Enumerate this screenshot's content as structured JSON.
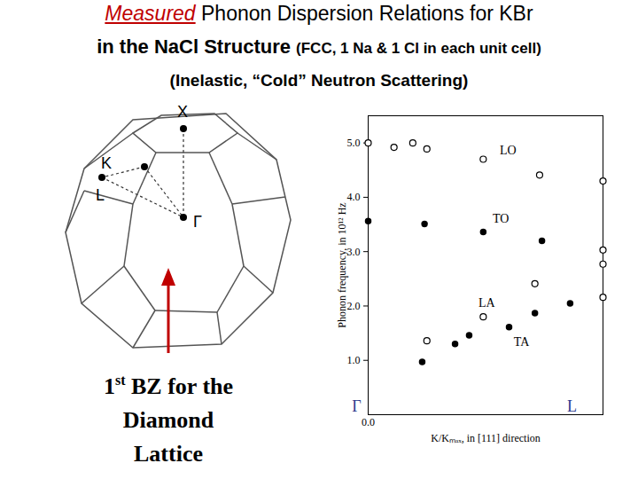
{
  "slide": {
    "title_emphasis": "Measured",
    "title": "Phonon Dispersion Relations for KBr",
    "subtitle": "in the NaCl Structure",
    "subtitle_note": "(FCC, 1 Na & 1 Cl in each unit cell)",
    "subtitle2": "(Inelastic, “Cold” Neutron Scattering)"
  },
  "diagram": {
    "labels": [
      "X",
      "K",
      "L",
      "Γ"
    ],
    "caption": {
      "lead": "1",
      "superscript": "st",
      "line1": " BZ for the",
      "line2": "Diamond",
      "line3": "Lattice"
    }
  },
  "chart_data": {
    "type": "scatter",
    "x_label": "K/Kₘₐₓ, in [111] direction",
    "y_label": "Phonon frequency, in 10¹² Hz",
    "xlim": [
      0,
      1
    ],
    "ylim": [
      0,
      5.5
    ],
    "xticks": [
      0
    ],
    "yticks": [
      1,
      2,
      3,
      4,
      5
    ],
    "grid": false,
    "series": [
      {
        "marker": "open",
        "color": "#000000",
        "x": [
          0,
          0.11,
          0.19,
          0.25,
          0.49,
          0.73,
          1.0,
          0.25,
          0.49,
          0.71,
          1.0,
          1.0,
          1.0
        ],
        "values": [
          5.0,
          4.92,
          5.0,
          4.89,
          4.7,
          4.41,
          4.3,
          1.36,
          1.8,
          2.41,
          3.03,
          2.77,
          2.16
        ]
      },
      {
        "marker": "filled",
        "color": "#000000",
        "x": [
          0,
          0.24,
          0.49,
          0.74,
          0.23,
          0.37,
          0.43,
          0.6,
          0.71,
          0.86
        ],
        "values": [
          3.56,
          3.51,
          3.36,
          3.2,
          0.97,
          1.3,
          1.46,
          1.61,
          1.87,
          2.05
        ]
      }
    ],
    "annotations": [
      {
        "text": "LO",
        "x": 0.56,
        "y": 4.87
      },
      {
        "text": "TO",
        "x": 0.53,
        "y": 3.6
      },
      {
        "text": "LA",
        "x": 0.47,
        "y": 2.05
      },
      {
        "text": "TA",
        "x": 0.62,
        "y": 1.34
      }
    ],
    "point_labels": [
      {
        "value": 0,
        "label": "Γ",
        "color": "#2b3a8c"
      },
      {
        "value": 1,
        "label": "L",
        "color": "#2b3a8c"
      }
    ]
  }
}
